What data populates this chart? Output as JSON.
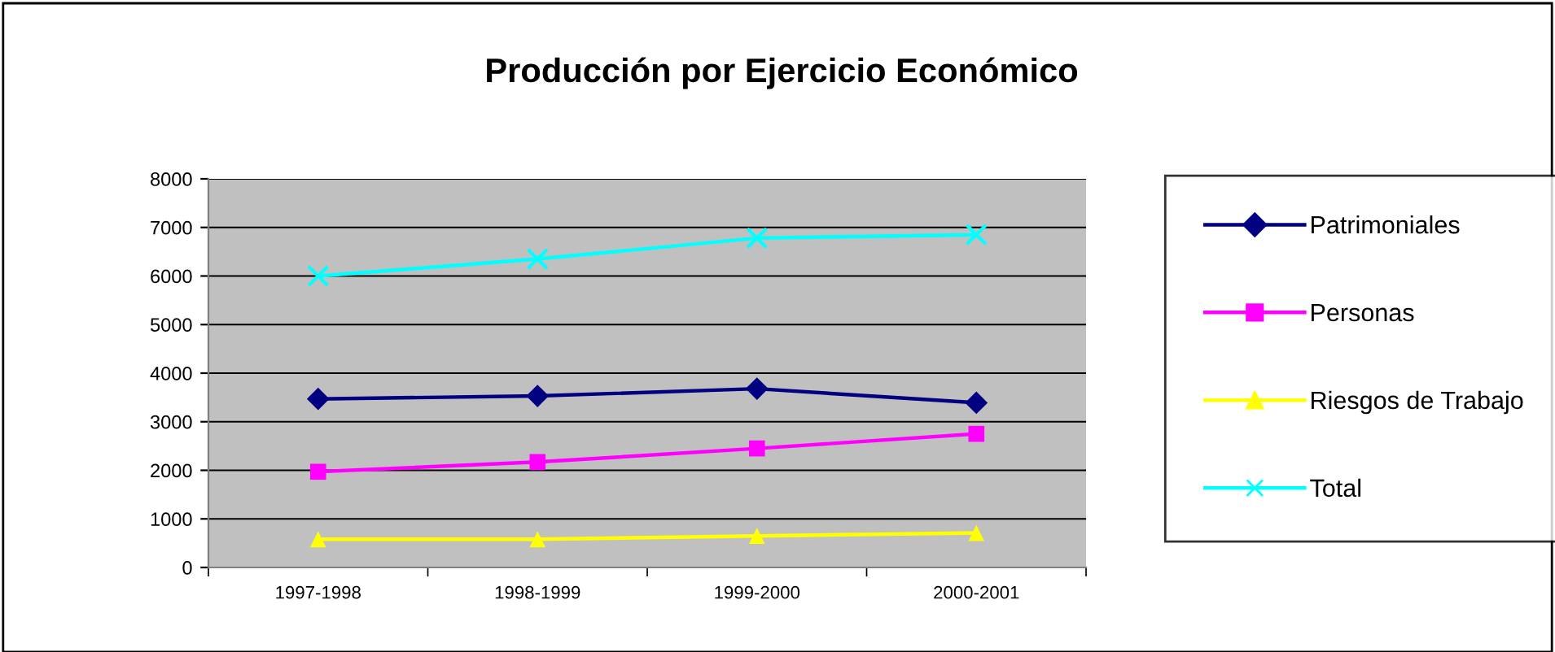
{
  "chart_data": {
    "type": "line",
    "title": "Producción por Ejercicio Económico",
    "categories": [
      "1997-1998",
      "1998-1999",
      "1999-2000",
      "2000-2001"
    ],
    "series": [
      {
        "name": "Patrimoniales",
        "color": "#000080",
        "marker": "diamond",
        "values": [
          3470,
          3530,
          3680,
          3390
        ]
      },
      {
        "name": "Personas",
        "color": "#ff00ff",
        "marker": "square",
        "values": [
          1970,
          2170,
          2450,
          2750
        ]
      },
      {
        "name": "Riesgos de Trabajo",
        "color": "#ffff00",
        "marker": "triangle",
        "values": [
          580,
          580,
          650,
          710
        ]
      },
      {
        "name": "Total",
        "color": "#00ffff",
        "marker": "cross",
        "values": [
          6000,
          6350,
          6780,
          6850
        ]
      }
    ],
    "ylim": [
      0,
      8000
    ],
    "yticks": [
      0,
      1000,
      2000,
      3000,
      4000,
      5000,
      6000,
      7000,
      8000
    ],
    "grid": "y",
    "legend": "right",
    "line_style": "solid"
  }
}
